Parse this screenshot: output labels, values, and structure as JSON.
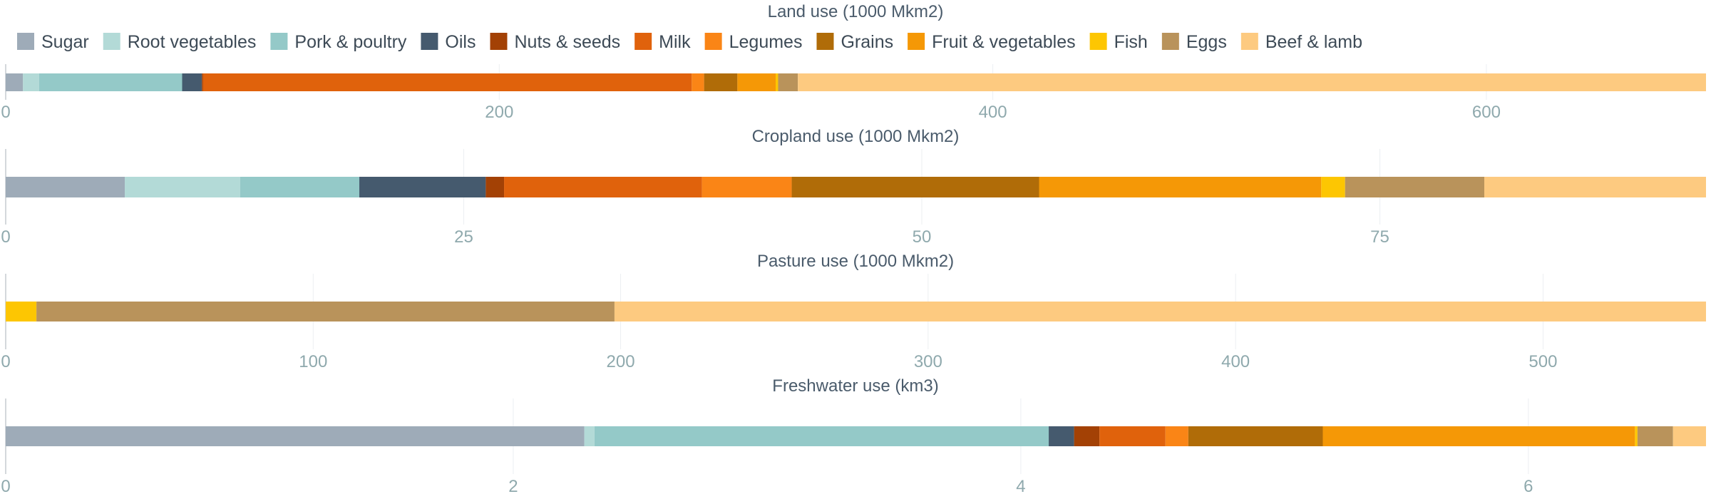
{
  "chart_data": {
    "type": "bar",
    "orientation": "horizontal",
    "stacked": true,
    "legend_placement": "top",
    "grid": true,
    "legend": {
      "items": [
        {
          "name": "Sugar",
          "color": "#9eabb8"
        },
        {
          "name": "Root vegetables",
          "color": "#b3dad7"
        },
        {
          "name": "Pork & poultry",
          "color": "#94c9c8"
        },
        {
          "name": "Oils",
          "color": "#455a6e"
        },
        {
          "name": "Nuts & seeds",
          "color": "#a34105"
        },
        {
          "name": "Milk",
          "color": "#e0620c"
        },
        {
          "name": "Legumes",
          "color": "#fa8516"
        },
        {
          "name": "Grains",
          "color": "#b06c08"
        },
        {
          "name": "Fruit & vegetables",
          "color": "#f59806"
        },
        {
          "name": "Fish",
          "color": "#fdc602"
        },
        {
          "name": "Eggs",
          "color": "#b9935b"
        },
        {
          "name": "Beef & lamb",
          "color": "#fdca80"
        }
      ]
    },
    "panels": [
      {
        "title": "Land use (1000 Mkm2)",
        "xlim": [
          0,
          689
        ],
        "ticks": [
          0,
          200,
          400,
          600
        ],
        "segments": [
          {
            "name": "Sugar",
            "value": 7
          },
          {
            "name": "Root vegetables",
            "value": 6.5
          },
          {
            "name": "Pork & poultry",
            "value": 58
          },
          {
            "name": "Oils",
            "value": 8
          },
          {
            "name": "Nuts & seeds",
            "value": 0.5
          },
          {
            "name": "Milk",
            "value": 198
          },
          {
            "name": "Legumes",
            "value": 5
          },
          {
            "name": "Grains",
            "value": 13.5
          },
          {
            "name": "Fruit & vegetables",
            "value": 15.5
          },
          {
            "name": "Fish",
            "value": 1
          },
          {
            "name": "Eggs",
            "value": 8
          },
          {
            "name": "Beef & lamb",
            "value": 368
          }
        ]
      },
      {
        "title": "Cropland use (1000 Mkm2)",
        "xlim": [
          0,
          92.8
        ],
        "ticks": [
          0,
          25,
          50,
          75
        ],
        "segments": [
          {
            "name": "Sugar",
            "value": 6.5
          },
          {
            "name": "Root vegetables",
            "value": 6.3
          },
          {
            "name": "Pork & poultry",
            "value": 6.5
          },
          {
            "name": "Oils",
            "value": 6.9
          },
          {
            "name": "Nuts & seeds",
            "value": 1.0
          },
          {
            "name": "Milk",
            "value": 10.8
          },
          {
            "name": "Legumes",
            "value": 4.9
          },
          {
            "name": "Grains",
            "value": 13.5
          },
          {
            "name": "Fruit & vegetables",
            "value": 15.4
          },
          {
            "name": "Fish",
            "value": 1.3
          },
          {
            "name": "Eggs",
            "value": 7.6
          },
          {
            "name": "Beef & lamb",
            "value": 12.1
          }
        ]
      },
      {
        "title": "Pasture use (1000 Mkm2)",
        "xlim": [
          0,
          553
        ],
        "ticks": [
          0,
          100,
          200,
          300,
          400,
          500
        ],
        "segments": [
          {
            "name": "Sugar",
            "value": 0
          },
          {
            "name": "Root vegetables",
            "value": 0
          },
          {
            "name": "Pork & poultry",
            "value": 0
          },
          {
            "name": "Oils",
            "value": 0
          },
          {
            "name": "Nuts & seeds",
            "value": 0
          },
          {
            "name": "Milk",
            "value": 0
          },
          {
            "name": "Legumes",
            "value": 0
          },
          {
            "name": "Grains",
            "value": 0
          },
          {
            "name": "Fruit & vegetables",
            "value": 0
          },
          {
            "name": "Fish",
            "value": 10
          },
          {
            "name": "Eggs",
            "value": 188
          },
          {
            "name": "Beef & lamb",
            "value": 355
          }
        ]
      },
      {
        "title": "Freshwater use (km3)",
        "xlim": [
          0,
          6.7
        ],
        "ticks": [
          0,
          2,
          4,
          6
        ],
        "segments": [
          {
            "name": "Sugar",
            "value": 2.28
          },
          {
            "name": "Root vegetables",
            "value": 0.04
          },
          {
            "name": "Pork & poultry",
            "value": 1.79
          },
          {
            "name": "Oils",
            "value": 0.1
          },
          {
            "name": "Nuts & seeds",
            "value": 0.1
          },
          {
            "name": "Milk",
            "value": 0.26
          },
          {
            "name": "Legumes",
            "value": 0.09
          },
          {
            "name": "Grains",
            "value": 0.53
          },
          {
            "name": "Fruit & vegetables",
            "value": 1.23
          },
          {
            "name": "Fish",
            "value": 0.01
          },
          {
            "name": "Eggs",
            "value": 0.14
          },
          {
            "name": "Beef & lamb",
            "value": 0.13
          }
        ]
      }
    ]
  }
}
